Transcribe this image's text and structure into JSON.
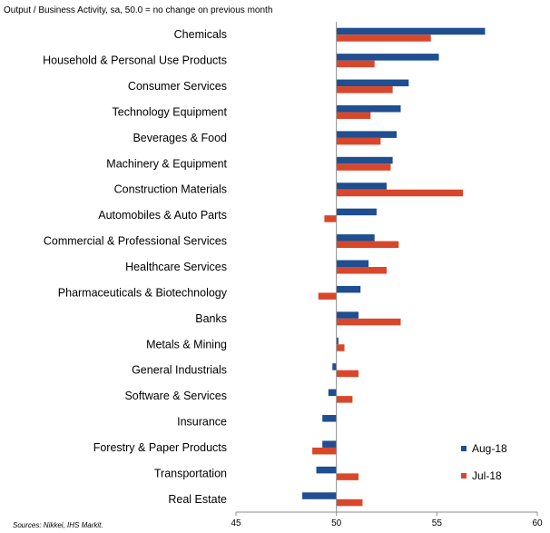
{
  "subtitle": "Output / Business Activity, sa, 50.0 = no change on previous month",
  "source": "Sources: Nikkei, IHS Markit.",
  "colors": {
    "aug": "#1f4e91",
    "jul": "#d9472b",
    "axis": "#8c8c8c"
  },
  "chart_data": {
    "type": "bar",
    "orientation": "horizontal",
    "title": "",
    "subtitle": "Output / Business Activity, sa, 50.0 = no change on previous month",
    "baseline": 50,
    "xlim": [
      45,
      60
    ],
    "xticks": [
      45,
      50,
      55,
      60
    ],
    "legend": "bottom-right",
    "grid": false,
    "categories": [
      "Chemicals",
      "Household & Personal Use Products",
      "Consumer Services",
      "Technology Equipment",
      "Beverages & Food",
      "Machinery & Equipment",
      "Construction Materials",
      "Automobiles & Auto Parts",
      "Commercial & Professional Services",
      "Healthcare Services",
      "Pharmaceuticals & Biotechnology",
      "Banks",
      "Metals & Mining",
      "General Industrials",
      "Software & Services",
      "Insurance",
      "Forestry & Paper Products",
      "Transportation",
      "Real Estate"
    ],
    "series": [
      {
        "name": "Aug-18",
        "values": [
          57.4,
          55.1,
          53.6,
          53.2,
          53.0,
          52.8,
          52.5,
          52.0,
          51.9,
          51.6,
          51.2,
          51.1,
          50.1,
          49.8,
          49.6,
          49.3,
          49.3,
          49.0,
          48.3
        ]
      },
      {
        "name": "Jul-18",
        "values": [
          54.7,
          51.9,
          52.8,
          51.7,
          52.2,
          52.7,
          56.3,
          49.4,
          53.1,
          52.5,
          49.1,
          53.2,
          50.4,
          51.1,
          50.8,
          null,
          48.8,
          51.1,
          51.3
        ]
      }
    ]
  }
}
